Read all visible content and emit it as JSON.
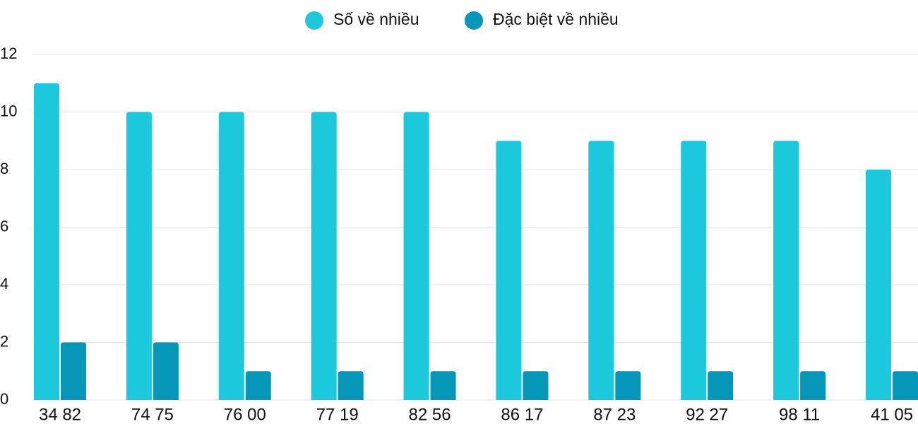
{
  "chart_data": {
    "type": "bar",
    "categories": [
      "34 82",
      "74 75",
      "76 00",
      "77 19",
      "82 56",
      "86 17",
      "87 23",
      "92 27",
      "98 11",
      "41 05"
    ],
    "series": [
      {
        "name": "Số về nhiều",
        "color": "#1bc8dc",
        "values": [
          11,
          10,
          10,
          10,
          10,
          9,
          9,
          9,
          9,
          8
        ]
      },
      {
        "name": "Đặc biệt về nhiều",
        "color": "#0596b8",
        "values": [
          2,
          2,
          1,
          1,
          1,
          1,
          1,
          1,
          1,
          1
        ]
      }
    ],
    "ylim": [
      0,
      12
    ],
    "yticks": [
      0,
      2,
      4,
      6,
      8,
      10,
      12
    ],
    "grid": true,
    "legend": "top"
  }
}
